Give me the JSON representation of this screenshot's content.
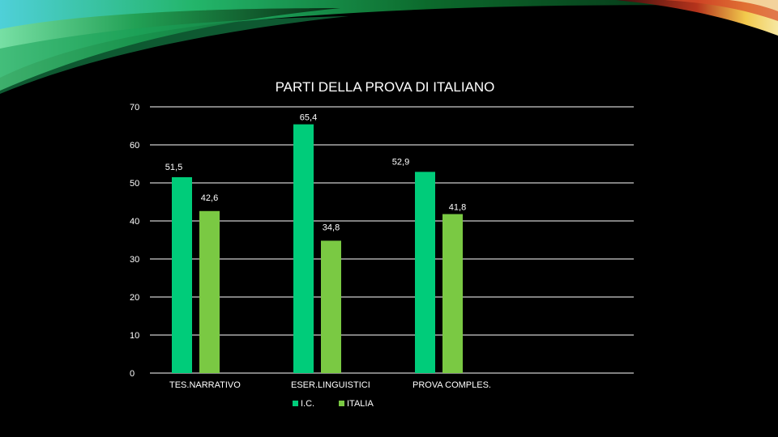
{
  "colors": {
    "background": "#000000",
    "series_ic": "#00cc7a",
    "series_italia": "#7ac943",
    "text": "#ffffff",
    "grid": "#ffffff"
  },
  "chart_data": {
    "type": "bar",
    "title": "PARTI DELLA PROVA DI ITALIANO",
    "xlabel": "",
    "ylabel": "",
    "categories": [
      "TES.NARRATIVO",
      "ESER.LINGUISTICI",
      "PROVA COMPLES."
    ],
    "series": [
      {
        "name": "I.C.",
        "values": [
          51.5,
          65.4,
          52.9
        ],
        "labels": [
          "51,5",
          "65,4",
          "52,9"
        ]
      },
      {
        "name": "ITALIA",
        "values": [
          42.6,
          34.8,
          41.8
        ],
        "labels": [
          "42,6",
          "34,8",
          "41,8"
        ]
      }
    ],
    "ylim": [
      0,
      70
    ],
    "yticks": [
      0,
      10,
      20,
      30,
      40,
      50,
      60,
      70
    ],
    "grid": true,
    "legend": "bottom"
  }
}
